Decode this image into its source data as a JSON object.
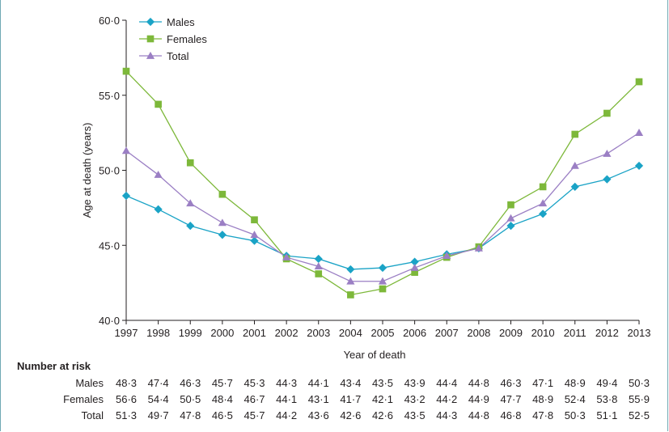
{
  "chart_data": {
    "type": "line",
    "xlabel": "Year of death",
    "ylabel": "Age at death (years)",
    "x": [
      1997,
      1998,
      1999,
      2000,
      2001,
      2002,
      2003,
      2004,
      2005,
      2006,
      2007,
      2008,
      2009,
      2010,
      2011,
      2012,
      2013
    ],
    "x_tick_labels": [
      "1997",
      "1998",
      "1999",
      "2000",
      "2001",
      "2002",
      "2003",
      "2004",
      "2005",
      "2006",
      "2007",
      "2008",
      "2009",
      "2010",
      "2011",
      "2012",
      "2013"
    ],
    "ylim": [
      40,
      60
    ],
    "y_ticks": [
      40,
      45,
      50,
      55,
      60
    ],
    "y_tick_labels": [
      "40·0",
      "45·0",
      "50·0",
      "55·0",
      "60·0"
    ],
    "legend_position": "top-left",
    "grid": false,
    "series": [
      {
        "name": "Males",
        "marker": "diamond",
        "color": "#1aa3c6",
        "values": [
          48.3,
          47.4,
          46.3,
          45.7,
          45.3,
          44.3,
          44.1,
          43.4,
          43.5,
          43.9,
          44.4,
          44.8,
          46.3,
          47.1,
          48.9,
          49.4,
          50.3
        ]
      },
      {
        "name": "Females",
        "marker": "square",
        "color": "#7db83a",
        "values": [
          56.6,
          54.4,
          50.5,
          48.4,
          46.7,
          44.1,
          43.1,
          41.7,
          42.1,
          43.2,
          44.2,
          44.9,
          47.7,
          48.9,
          52.4,
          53.8,
          55.9
        ]
      },
      {
        "name": "Total",
        "marker": "triangle",
        "color": "#9b7fc4",
        "values": [
          51.3,
          49.7,
          47.8,
          46.5,
          45.7,
          44.2,
          43.6,
          42.6,
          42.6,
          43.5,
          44.3,
          44.8,
          46.8,
          47.8,
          50.3,
          51.1,
          52.5
        ]
      }
    ]
  },
  "risk_table": {
    "title": "Number at risk",
    "rows": [
      {
        "label": "Males",
        "values": [
          "48·3",
          "47·4",
          "46·3",
          "45·7",
          "45·3",
          "44·3",
          "44·1",
          "43·4",
          "43·5",
          "43·9",
          "44·4",
          "44·8",
          "46·3",
          "47·1",
          "48·9",
          "49·4",
          "50·3"
        ]
      },
      {
        "label": "Females",
        "values": [
          "56·6",
          "54·4",
          "50·5",
          "48·4",
          "46·7",
          "44·1",
          "43·1",
          "41·7",
          "42·1",
          "43·2",
          "44·2",
          "44·9",
          "47·7",
          "48·9",
          "52·4",
          "53·8",
          "55·9"
        ]
      },
      {
        "label": "Total",
        "values": [
          "51·3",
          "49·7",
          "47·8",
          "46·5",
          "45·7",
          "44·2",
          "43·6",
          "42·6",
          "42·6",
          "43·5",
          "44·3",
          "44·8",
          "46·8",
          "47·8",
          "50·3",
          "51·1",
          "52·5"
        ]
      }
    ]
  }
}
